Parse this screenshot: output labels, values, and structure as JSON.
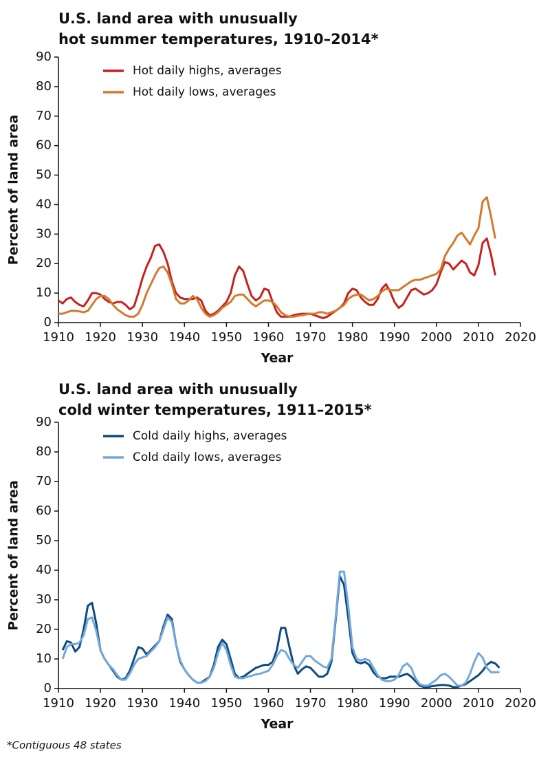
{
  "chart_data": [
    {
      "type": "line",
      "title": [
        "U.S. land area with unusually",
        "hot summer temperatures, 1910–2014*"
      ],
      "xlabel": "Year",
      "ylabel": "Percent of land area",
      "legend": "upper left",
      "grid": false,
      "xlim": [
        1910,
        2020
      ],
      "xticks": [
        1910,
        1920,
        1930,
        1940,
        1950,
        1960,
        1970,
        1980,
        1990,
        2000,
        2010,
        2020
      ],
      "ylim": [
        0,
        90
      ],
      "yticks": [
        0,
        10,
        20,
        30,
        40,
        50,
        60,
        70,
        80,
        90
      ],
      "x": [
        1910,
        1911,
        1912,
        1913,
        1914,
        1915,
        1916,
        1917,
        1918,
        1919,
        1920,
        1921,
        1922,
        1923,
        1924,
        1925,
        1926,
        1927,
        1928,
        1929,
        1930,
        1931,
        1932,
        1933,
        1934,
        1935,
        1936,
        1937,
        1938,
        1939,
        1940,
        1941,
        1942,
        1943,
        1944,
        1945,
        1946,
        1947,
        1948,
        1949,
        1950,
        1951,
        1952,
        1953,
        1954,
        1955,
        1956,
        1957,
        1958,
        1959,
        1960,
        1961,
        1962,
        1963,
        1964,
        1965,
        1966,
        1967,
        1968,
        1969,
        1970,
        1971,
        1972,
        1973,
        1974,
        1975,
        1976,
        1977,
        1978,
        1979,
        1980,
        1981,
        1982,
        1983,
        1984,
        1985,
        1986,
        1987,
        1988,
        1989,
        1990,
        1991,
        1992,
        1993,
        1994,
        1995,
        1996,
        1997,
        1998,
        1999,
        2000,
        2001,
        2002,
        2003,
        2004,
        2005,
        2006,
        2007,
        2008,
        2009,
        2010,
        2011,
        2012,
        2013,
        2014
      ],
      "series": [
        {
          "name": "Hot daily highs, averages",
          "color": "#c8201e",
          "values": [
            7.5,
            6.5,
            8,
            8.5,
            7,
            6,
            5.5,
            7.5,
            10,
            10,
            9.5,
            8,
            7,
            6.5,
            7,
            7,
            6,
            4.5,
            5.5,
            10,
            15,
            19,
            22,
            26,
            26.5,
            24,
            20,
            14,
            10,
            8.5,
            8,
            8,
            8,
            8.5,
            7.5,
            4,
            2.5,
            3,
            4,
            5.5,
            7,
            10,
            16,
            19,
            17.5,
            13,
            9,
            7.5,
            8.5,
            11.5,
            11,
            7,
            3.5,
            2,
            2,
            2,
            2.5,
            2.8,
            3,
            3,
            3,
            2.5,
            2,
            1.5,
            2,
            3,
            4,
            5,
            6.5,
            10,
            11.5,
            11,
            8.5,
            7,
            6,
            6,
            8,
            11.5,
            13,
            10.5,
            7,
            5,
            6,
            8.5,
            11,
            11.5,
            10.5,
            9.5,
            10,
            11,
            13,
            17,
            20.5,
            20,
            18,
            19.5,
            21,
            20,
            17,
            16,
            19.5,
            27,
            28.5,
            23,
            16
          ]
        },
        {
          "name": "Hot daily lows, averages",
          "color": "#d4792a",
          "values": [
            3,
            3,
            3.5,
            4,
            4,
            3.8,
            3.5,
            4,
            6,
            8,
            9,
            9,
            8,
            6,
            4.5,
            3.5,
            2.5,
            2,
            2,
            3,
            6,
            10,
            13,
            16,
            18.5,
            19,
            17,
            13,
            8,
            6.5,
            6.5,
            7.5,
            9,
            8,
            5,
            3,
            2,
            2.5,
            3.5,
            5,
            6,
            7,
            9,
            9.5,
            9.5,
            8,
            6.5,
            5.5,
            6.5,
            7.5,
            7.5,
            7,
            5.5,
            3.5,
            2.5,
            2,
            2,
            2.3,
            2.5,
            2.8,
            3,
            3,
            3.5,
            3.5,
            3,
            3.5,
            4,
            5,
            6,
            8,
            9,
            9.5,
            9.5,
            8.5,
            7.5,
            8,
            9,
            10.5,
            11.5,
            11,
            11,
            11,
            12,
            13,
            14,
            14.5,
            14.5,
            15,
            15.5,
            16,
            16.5,
            18,
            22.5,
            25,
            27,
            29.5,
            30.5,
            28.5,
            26.5,
            29.5,
            32,
            41,
            42.5,
            36,
            28.5
          ]
        }
      ]
    },
    {
      "type": "line",
      "title": [
        "U.S. land area with unusually",
        "cold winter temperatures, 1911–2015*"
      ],
      "xlabel": "Year",
      "ylabel": "Percent of land area",
      "legend": "upper left",
      "grid": false,
      "xlim": [
        1910,
        2020
      ],
      "xticks": [
        1910,
        1920,
        1930,
        1940,
        1950,
        1960,
        1970,
        1980,
        1990,
        2000,
        2010,
        2020
      ],
      "ylim": [
        0,
        90
      ],
      "yticks": [
        0,
        10,
        20,
        30,
        40,
        50,
        60,
        70,
        80,
        90
      ],
      "x": [
        1911,
        1912,
        1913,
        1914,
        1915,
        1916,
        1917,
        1918,
        1919,
        1920,
        1921,
        1922,
        1923,
        1924,
        1925,
        1926,
        1927,
        1928,
        1929,
        1930,
        1931,
        1932,
        1933,
        1934,
        1935,
        1936,
        1937,
        1938,
        1939,
        1940,
        1941,
        1942,
        1943,
        1944,
        1945,
        1946,
        1947,
        1948,
        1949,
        1950,
        1951,
        1952,
        1953,
        1954,
        1955,
        1956,
        1957,
        1958,
        1959,
        1960,
        1961,
        1962,
        1963,
        1964,
        1965,
        1966,
        1967,
        1968,
        1969,
        1970,
        1971,
        1972,
        1973,
        1974,
        1975,
        1976,
        1977,
        1978,
        1979,
        1980,
        1981,
        1982,
        1983,
        1984,
        1985,
        1986,
        1987,
        1988,
        1989,
        1990,
        1991,
        1992,
        1993,
        1994,
        1995,
        1996,
        1997,
        1998,
        1999,
        2000,
        2001,
        2002,
        2003,
        2004,
        2005,
        2006,
        2007,
        2008,
        2009,
        2010,
        2011,
        2012,
        2013,
        2014,
        2015
      ],
      "series": [
        {
          "name": "Cold daily highs, averages",
          "color": "#0d4a80",
          "values": [
            13,
            16,
            15.5,
            12.5,
            14,
            20,
            28,
            29,
            22,
            13,
            10,
            8,
            6,
            4,
            3,
            3.5,
            6,
            10,
            14,
            13.5,
            11.5,
            13,
            14.5,
            16,
            21,
            25,
            23.5,
            15,
            9,
            6.5,
            4.5,
            3,
            2,
            2,
            3,
            4,
            8,
            14,
            16.5,
            15,
            10,
            5,
            3.5,
            4,
            5,
            6,
            7,
            7.5,
            8,
            8,
            9,
            13,
            20.5,
            20.5,
            14,
            8,
            5,
            6.5,
            7.5,
            7,
            5.5,
            4,
            4,
            5,
            9,
            23,
            38,
            35,
            24,
            12,
            9,
            8.5,
            9,
            8,
            5.5,
            4,
            3.5,
            3.5,
            4,
            4,
            4,
            4.5,
            5,
            4,
            2.5,
            1,
            0.5,
            0.5,
            0.8,
            1,
            1.2,
            1.2,
            1,
            0.5,
            0.5,
            1,
            1.5,
            2.5,
            3.5,
            4.5,
            6,
            8,
            9,
            8.5,
            7
          ]
        },
        {
          "name": "Cold daily lows, averages",
          "color": "#74a8d8",
          "values": [
            10,
            14,
            15,
            15,
            15.5,
            18,
            23.5,
            24,
            19.5,
            13,
            10,
            8,
            6.5,
            4.5,
            3,
            3,
            5,
            8,
            10,
            10.5,
            11,
            12.5,
            14,
            16,
            20,
            24,
            22.5,
            15,
            9.5,
            6.5,
            4.5,
            3,
            2,
            2,
            2.5,
            4,
            7,
            12,
            15.5,
            13,
            8,
            4,
            3.5,
            3.5,
            4,
            4.3,
            4.8,
            5,
            5.5,
            6,
            8,
            11,
            13,
            12.5,
            10,
            8,
            7,
            9,
            11,
            11,
            9.5,
            8.5,
            7.5,
            7,
            10,
            24,
            39.5,
            39.5,
            28,
            14,
            10,
            9.5,
            10,
            9.5,
            7,
            4.5,
            3,
            2.5,
            2.5,
            3,
            4.5,
            7.5,
            8.5,
            7,
            3.5,
            1.5,
            1,
            1,
            2,
            3,
            4.5,
            5,
            4,
            2.5,
            1,
            1,
            2,
            5,
            9,
            12,
            10.5,
            7,
            5.5,
            5.5,
            5.5
          ]
        }
      ]
    }
  ],
  "footnote": "*Contiguous 48 states"
}
